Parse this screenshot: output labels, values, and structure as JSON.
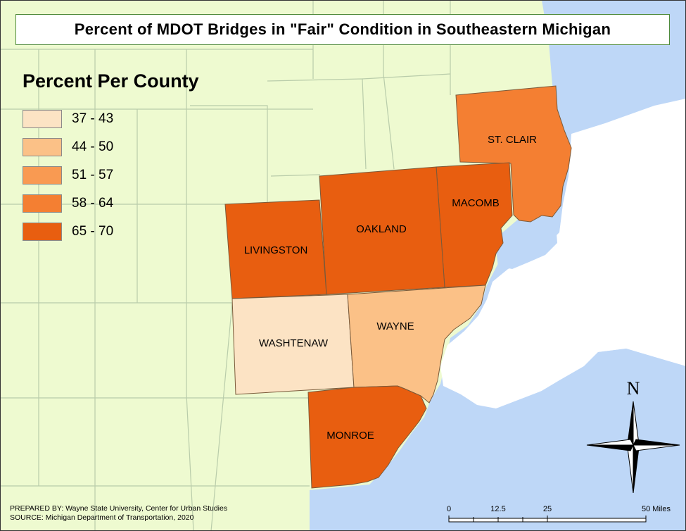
{
  "title": "Percent of MDOT Bridges in \"Fair\" Condition in Southeastern Michigan",
  "legend": {
    "title": "Percent Per County",
    "classes": [
      {
        "label": "37 - 43",
        "color": "#fce3c4"
      },
      {
        "label": "44 - 50",
        "color": "#fbc187"
      },
      {
        "label": "51 - 57",
        "color": "#f99a52"
      },
      {
        "label": "58 - 64",
        "color": "#f47f32"
      },
      {
        "label": "65 - 70",
        "color": "#e85e10"
      }
    ]
  },
  "counties": {
    "st_clair": "ST. CLAIR",
    "macomb": "MACOMB",
    "oakland": "OAKLAND",
    "livingston": "LIVINGSTON",
    "washtenaw": "WASHTENAW",
    "wayne": "WAYNE",
    "monroe": "MONROE"
  },
  "north_arrow": {
    "label": "N"
  },
  "scale_bar": {
    "ticks": [
      "0",
      "12.5",
      "25",
      "50 Miles"
    ]
  },
  "credits": {
    "prepared_by": "PREPARED BY: Wayne State University, Center for Urban Studies",
    "source": "SOURCE: Michigan Department of Transportation, 2020"
  },
  "colors": {
    "land": "#eefad0",
    "water": "#bed7f7",
    "county_lines": "#b9ccaa"
  }
}
